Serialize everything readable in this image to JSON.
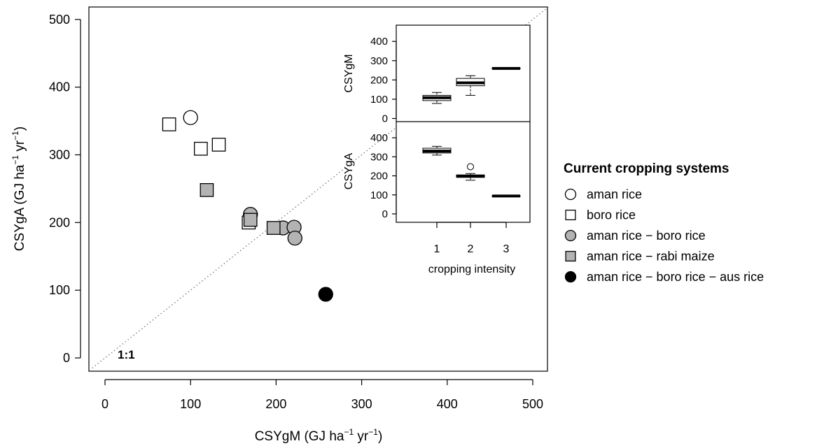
{
  "chart_data": [
    {
      "type": "scatter",
      "xlabel": "CSYgM (GJ ha",
      "xlabel_sup1": "−1",
      "xlabel_mid": " yr",
      "xlabel_sup2": "−1",
      "xlabel_end": ")",
      "ylabel": "CSYgA (GJ ha",
      "ylabel_sup1": "−1",
      "ylabel_mid": " yr",
      "ylabel_sup2": "−1",
      "ylabel_end": ")",
      "xlim": [
        -20,
        520
      ],
      "ylim": [
        -15,
        520
      ],
      "xticks": [
        0,
        100,
        200,
        300,
        400,
        500
      ],
      "yticks": [
        0,
        100,
        200,
        300,
        400,
        500
      ],
      "reference_line": {
        "label": "1:1",
        "slope": 1,
        "style": "dotted"
      },
      "legend": {
        "title": "Current cropping systems",
        "position": "right",
        "entries": [
          {
            "label": "aman rice",
            "marker": "circle",
            "fill": "#ffffff"
          },
          {
            "label": "boro rice",
            "marker": "square",
            "fill": "#ffffff"
          },
          {
            "label": "aman rice − boro rice",
            "marker": "circle",
            "fill": "#b3b3b3"
          },
          {
            "label": "aman rice − rabi maize",
            "marker": "square",
            "fill": "#b3b3b3"
          },
          {
            "label": "aman rice − boro rice − aus rice",
            "marker": "circle",
            "fill": "#000000"
          }
        ]
      },
      "series": [
        {
          "system": "aman rice",
          "marker": "circle",
          "fill": "#ffffff",
          "points": [
            [
              100,
              355
            ]
          ]
        },
        {
          "system": "boro rice",
          "marker": "square",
          "fill": "#ffffff",
          "points": [
            [
              75,
              345
            ],
            [
              112,
              309
            ],
            [
              133,
              315
            ],
            [
              168,
              200
            ]
          ]
        },
        {
          "system": "aman rice − boro rice",
          "marker": "circle",
          "fill": "#b3b3b3",
          "points": [
            [
              170,
              212
            ],
            [
              208,
              192
            ],
            [
              221,
              193
            ],
            [
              222,
              177
            ]
          ]
        },
        {
          "system": "aman rice − rabi maize",
          "marker": "square",
          "fill": "#b3b3b3",
          "points": [
            [
              119,
              248
            ],
            [
              170,
              204
            ],
            [
              197,
              192
            ]
          ]
        },
        {
          "system": "aman rice − boro rice − aus rice",
          "marker": "circle",
          "fill": "#000000",
          "points": [
            [
              258,
              94
            ]
          ]
        }
      ]
    },
    {
      "type": "boxplot",
      "xlabel": "cropping intensity",
      "categories": [
        "1",
        "2",
        "3"
      ],
      "panels": [
        {
          "ylabel": "CSYgM",
          "ylim": [
            0,
            470
          ],
          "yticks": [
            0,
            100,
            200,
            300,
            400
          ],
          "boxes": [
            {
              "category": "1",
              "min": 78,
              "q1": 93,
              "median": 108,
              "q3": 120,
              "max": 135,
              "outliers": []
            },
            {
              "category": "2",
              "min": 120,
              "q1": 170,
              "median": 185,
              "q3": 208,
              "max": 222,
              "outliers": []
            },
            {
              "category": "3",
              "min": 258,
              "q1": 258,
              "median": 260,
              "q3": 262,
              "max": 262,
              "outliers": []
            }
          ]
        },
        {
          "ylabel": "CSYgA",
          "ylim": [
            0,
            470
          ],
          "yticks": [
            0,
            100,
            200,
            300,
            400
          ],
          "boxes": [
            {
              "category": "1",
              "min": 309,
              "q1": 320,
              "median": 330,
              "q3": 345,
              "max": 355,
              "outliers": []
            },
            {
              "category": "2",
              "min": 177,
              "q1": 192,
              "median": 198,
              "q3": 205,
              "max": 212,
              "outliers": [
                248
              ]
            },
            {
              "category": "3",
              "min": 93,
              "q1": 93,
              "median": 94,
              "q3": 95,
              "max": 95,
              "outliers": []
            }
          ]
        }
      ]
    }
  ]
}
